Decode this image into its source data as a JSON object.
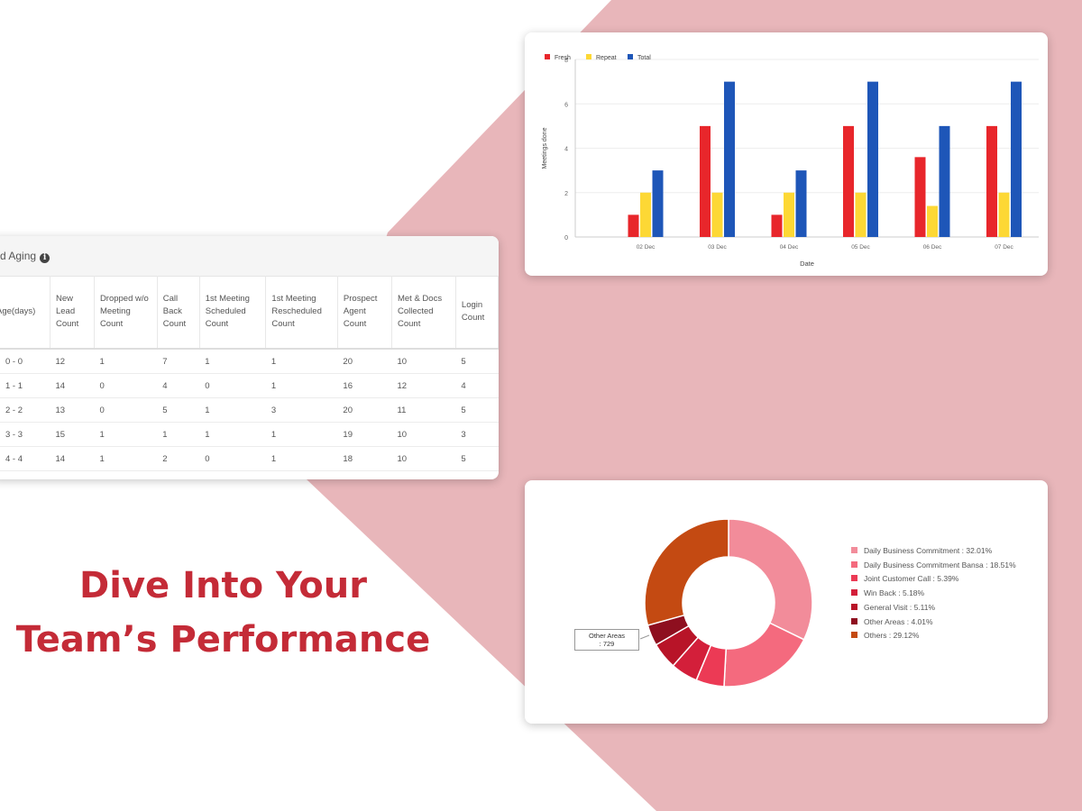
{
  "colors": {
    "accent_bg": "#e8b6ba",
    "headline": "#c42b37",
    "fresh": "#e8262b",
    "repeat": "#fdd835",
    "total": "#1e56b8"
  },
  "headline": {
    "line1": "Dive Into Your",
    "line2": "Team’s Performance"
  },
  "bar_chart": {
    "chart_data": {
      "type": "bar",
      "title": "",
      "xlabel": "Date",
      "ylabel": "Meetings done",
      "ylim": [
        0,
        8
      ],
      "yticks": [
        "0",
        "2",
        "4",
        "6",
        "8"
      ],
      "grid": true,
      "legend_position": "top-left",
      "categories": [
        "02 Dec",
        "03 Dec",
        "04 Dec",
        "05 Dec",
        "06 Dec",
        "07 Dec"
      ],
      "series": [
        {
          "name": "Fresh",
          "color": "#e8262b",
          "values": [
            1,
            5,
            1,
            5,
            3.6,
            5
          ]
        },
        {
          "name": "Repeat",
          "color": "#fdd835",
          "values": [
            2,
            2,
            2,
            2,
            1.4,
            2
          ]
        },
        {
          "name": "Total",
          "color": "#1e56b8",
          "values": [
            3,
            7,
            3,
            7,
            5,
            7
          ]
        }
      ]
    }
  },
  "table": {
    "title": "d Aging",
    "headers": [
      "Age(days)",
      "New Lead Count",
      "Dropped w/o Meeting Count",
      "Call Back Count",
      "1st Meeting Scheduled Count",
      "1st Meeting Rescheduled Count",
      "Prospect Agent Count",
      "Met & Docs Collected Count",
      "Login Count"
    ],
    "rows": [
      [
        "0 - 0",
        "12",
        "1",
        "7",
        "1",
        "1",
        "20",
        "10",
        "5"
      ],
      [
        "1 - 1",
        "14",
        "0",
        "4",
        "0",
        "1",
        "16",
        "12",
        "4"
      ],
      [
        "2 - 2",
        "13",
        "0",
        "5",
        "1",
        "3",
        "20",
        "11",
        "5"
      ],
      [
        "3 - 3",
        "15",
        "1",
        "1",
        "1",
        "1",
        "19",
        "10",
        "3"
      ],
      [
        "4 - 4",
        "14",
        "1",
        "2",
        "0",
        "1",
        "18",
        "10",
        "5"
      ]
    ]
  },
  "donut_chart": {
    "tooltip": {
      "line1": "Other Areas",
      "line2": ": 729"
    },
    "chart_data": {
      "type": "pie",
      "title": "",
      "legend_position": "right",
      "slices": [
        {
          "label": "Daily Business Commitment : 32.01%",
          "value": 32.01,
          "color": "#f28c9a"
        },
        {
          "label": "Daily Business Commitment Bansa : 18.51%",
          "value": 18.51,
          "color": "#f46a7e"
        },
        {
          "label": "Joint Customer Call : 5.39%",
          "value": 5.39,
          "color": "#ec3a55"
        },
        {
          "label": "Win Back : 5.18%",
          "value": 5.18,
          "color": "#d31f3a"
        },
        {
          "label": "General Visit : 5.11%",
          "value": 5.11,
          "color": "#b81428"
        },
        {
          "label": "Other Areas : 4.01%",
          "value": 4.01,
          "color": "#8e0f1f"
        },
        {
          "label": "Others : 29.12%",
          "value": 29.12,
          "color": "#c44a12"
        }
      ]
    }
  }
}
